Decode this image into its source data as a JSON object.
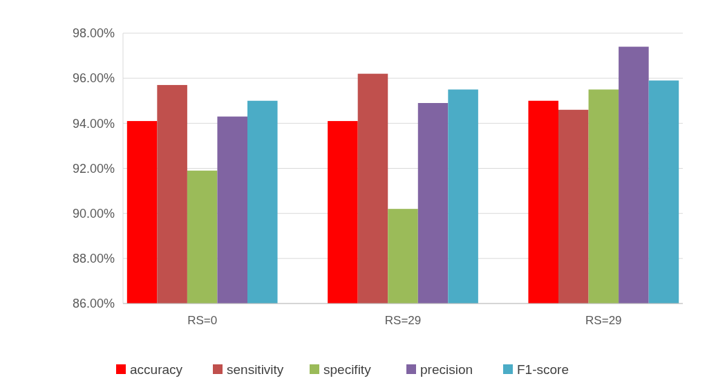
{
  "chart_data": {
    "type": "bar",
    "categories": [
      "RS=0",
      "RS=29",
      "RS=29"
    ],
    "series": [
      {
        "name": "accuracy",
        "color": "#ff0000",
        "values": [
          94.1,
          94.1,
          95.0
        ]
      },
      {
        "name": "sensitivity",
        "color": "#c0504d",
        "values": [
          95.7,
          96.2,
          94.6
        ]
      },
      {
        "name": "specifity",
        "color": "#9bbb59",
        "values": [
          91.9,
          90.2,
          95.5
        ]
      },
      {
        "name": "precision",
        "color": "#8064a2",
        "values": [
          94.3,
          94.9,
          97.4
        ]
      },
      {
        "name": "F1-score",
        "color": "#4bacc6",
        "values": [
          95.0,
          95.5,
          95.9
        ]
      }
    ],
    "ylim": [
      86,
      98
    ],
    "yticks": [
      {
        "value": 86,
        "label": "86.00%"
      },
      {
        "value": 88,
        "label": "88.00%"
      },
      {
        "value": 90,
        "label": "90.00%"
      },
      {
        "value": 92,
        "label": "92.00%"
      },
      {
        "value": 94,
        "label": "94.00%"
      },
      {
        "value": 96,
        "label": "96.00%"
      },
      {
        "value": 98,
        "label": "98.00%"
      }
    ],
    "grid": "y",
    "legend": "bottom"
  }
}
